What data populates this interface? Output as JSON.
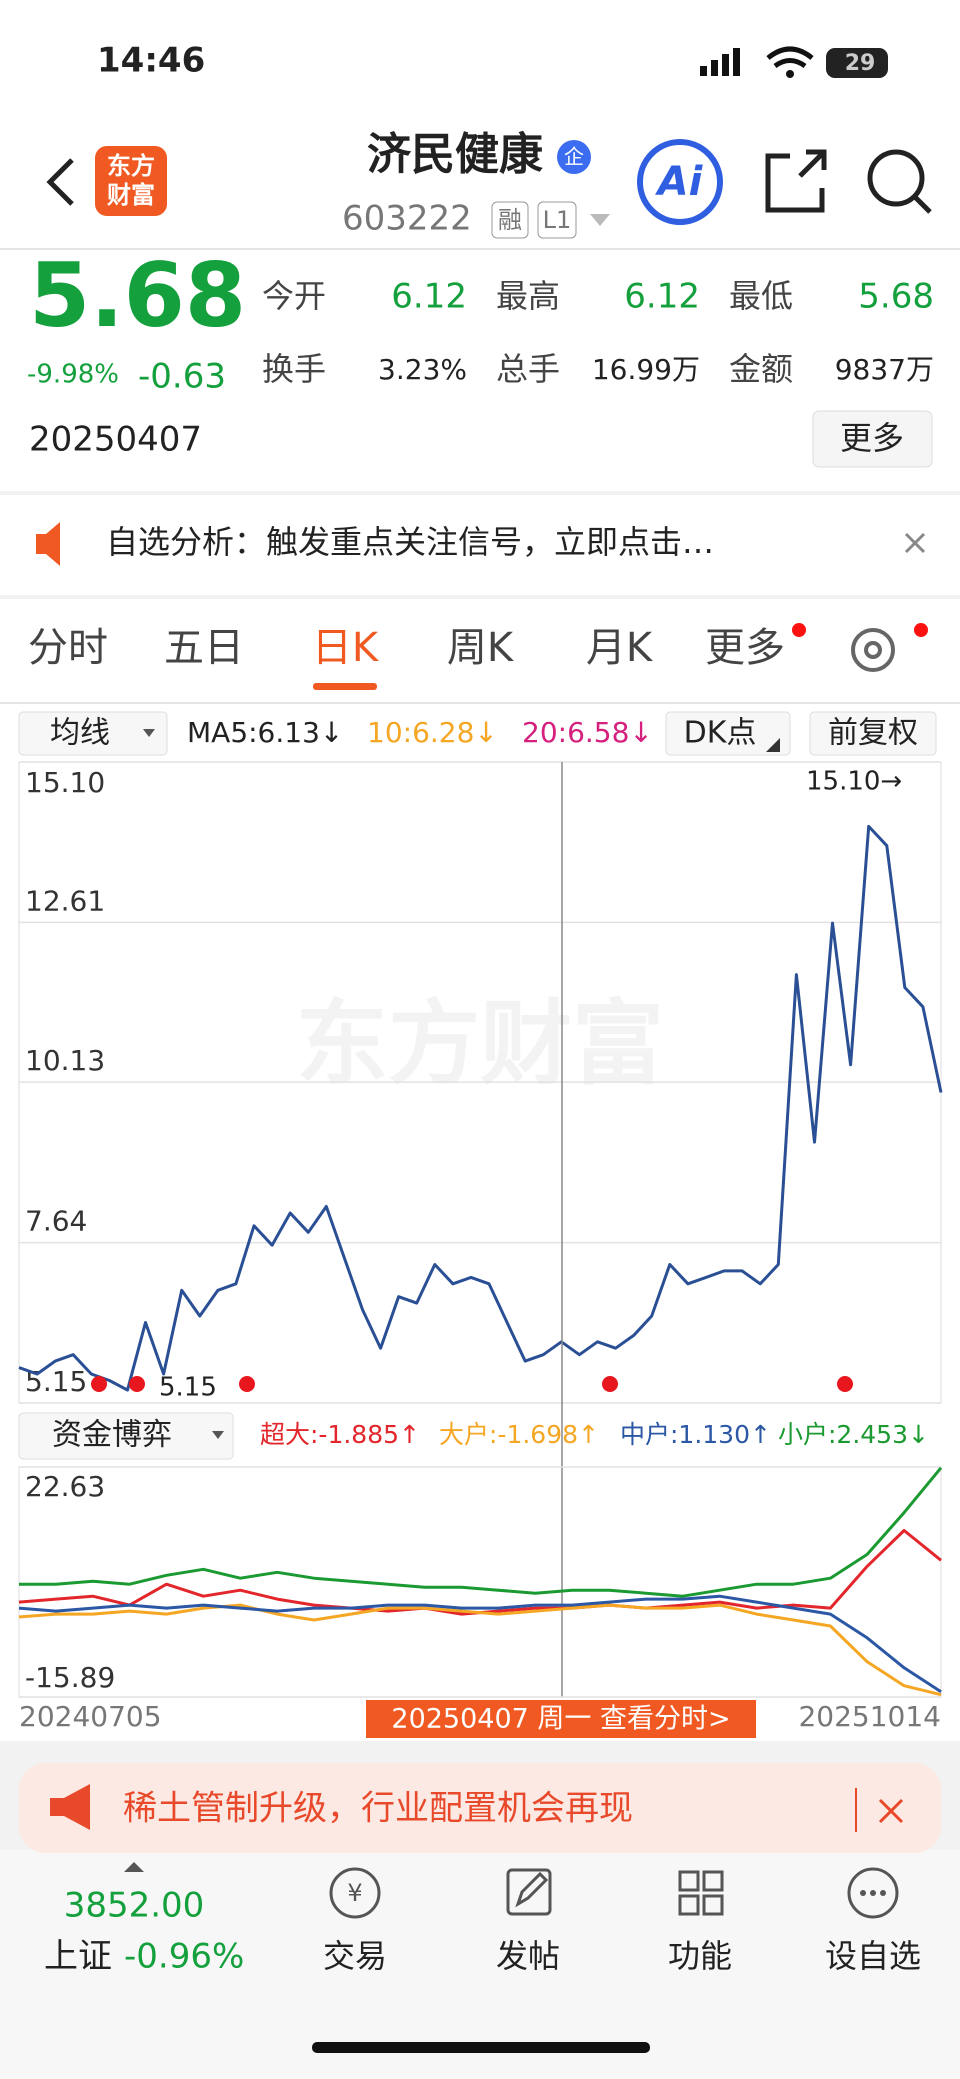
{
  "status": {
    "time": "14:46",
    "battery": "29"
  },
  "header": {
    "logo": [
      "东方",
      "财富"
    ],
    "title": "济民健康",
    "badge": "企",
    "code": "603222",
    "tags": [
      "融",
      "L1"
    ],
    "ai": "Ai"
  },
  "quote": {
    "price": "5.68",
    "change_pct": "-9.98%",
    "change": "-0.63",
    "date": "20250407",
    "fields": [
      {
        "label": "今开",
        "value": "6.12"
      },
      {
        "label": "最高",
        "value": "6.12"
      },
      {
        "label": "最低",
        "value": "5.68"
      },
      {
        "label": "换手",
        "value": "3.23%"
      },
      {
        "label": "总手",
        "value": "16.99万"
      },
      {
        "label": "金额",
        "value": "9837万"
      }
    ],
    "more": "更多"
  },
  "notice": {
    "text": "自选分析：触发重点关注信号，立即点击…"
  },
  "tabs": [
    "分时",
    "五日",
    "日K",
    "周K",
    "月K",
    "更多"
  ],
  "indicators": {
    "selector": "均线",
    "ma": [
      "MA5:6.13↓",
      "10:6.28↓",
      "20:6.58↓"
    ],
    "dk": "DK点",
    "adjust": "前复权"
  },
  "chart_data": [
    {
      "type": "line",
      "watermark": "东方财富",
      "color": "#2a4f95",
      "ylim": [
        5.15,
        15.1
      ],
      "yticks": [
        {
          "value": 15.1,
          "label": "15.10"
        },
        12.61,
        10.13,
        7.64,
        5.15
      ],
      "max_label": "15.10→",
      "min_label": "5.15",
      "values": [
        5.7,
        5.6,
        5.8,
        5.9,
        5.6,
        5.5,
        5.35,
        6.4,
        5.6,
        6.9,
        6.5,
        6.9,
        7.0,
        7.9,
        7.6,
        8.1,
        7.8,
        8.2,
        7.4,
        6.6,
        6.0,
        6.8,
        6.7,
        7.3,
        7.0,
        7.1,
        7.0,
        6.4,
        5.8,
        5.9,
        6.1,
        5.9,
        6.1,
        6.0,
        6.2,
        6.5,
        7.3,
        7.0,
        7.1,
        7.2,
        7.2,
        7.0,
        7.3,
        11.8,
        9.2,
        12.6,
        10.4,
        14.1,
        13.8,
        11.6,
        11.3,
        9.97
      ]
    },
    {
      "type": "line",
      "title": "资金博弈",
      "ylim": [
        -15.89,
        22.63
      ],
      "yticks": [
        22.63,
        -15.89
      ],
      "x_labels": [
        "20240705",
        "20251014"
      ],
      "cursor_label": "20250407 周一 查看分时>",
      "series": [
        {
          "label": "超大:-1.885↑",
          "color": "#e3262b",
          "values": [
            0,
            0.5,
            1,
            -0.5,
            3,
            1,
            2,
            0.5,
            -0.5,
            -1,
            -1.5,
            -1,
            -2,
            -1.5,
            -1,
            -1,
            -0.5,
            -1,
            -0.5,
            0,
            -1,
            -0.5,
            -1,
            6,
            12,
            7
          ]
        },
        {
          "label": "大户:-1.698↑",
          "color": "#f5a623",
          "values": [
            -2.5,
            -2,
            -2,
            -1.5,
            -2,
            -1,
            -0.5,
            -2,
            -3,
            -2,
            -1,
            -1,
            -1.5,
            -2,
            -1.5,
            -1,
            -0.5,
            -1,
            -1,
            -0.5,
            -2,
            -3,
            -4,
            -10,
            -14,
            -15.5
          ]
        },
        {
          "label": "中户:1.130↑",
          "color": "#2b57a5",
          "values": [
            -1,
            -1.5,
            -1,
            -0.5,
            -1,
            -0.5,
            -1,
            -1.5,
            -1,
            -1,
            -0.5,
            -0.5,
            -1,
            -1,
            -0.5,
            -0.5,
            0,
            0.5,
            0.5,
            1,
            0,
            -1,
            -2,
            -6,
            -11,
            -15
          ]
        },
        {
          "label": "小户:2.453↓",
          "color": "#1a9a30",
          "values": [
            3,
            3,
            3.5,
            3,
            4.5,
            5.5,
            4,
            5,
            4,
            3.5,
            3,
            2.5,
            2.5,
            2,
            1.5,
            2,
            2,
            1.5,
            1,
            2,
            3,
            3,
            4,
            8,
            15,
            22.5
          ]
        }
      ]
    }
  ],
  "ad": {
    "text": "稀土管制升级，行业配置机会再现"
  },
  "nav": {
    "index_value": "3852.00",
    "index_name": "上证",
    "index_change": "-0.96%",
    "items": [
      "交易",
      "发帖",
      "功能",
      "设自选"
    ]
  }
}
